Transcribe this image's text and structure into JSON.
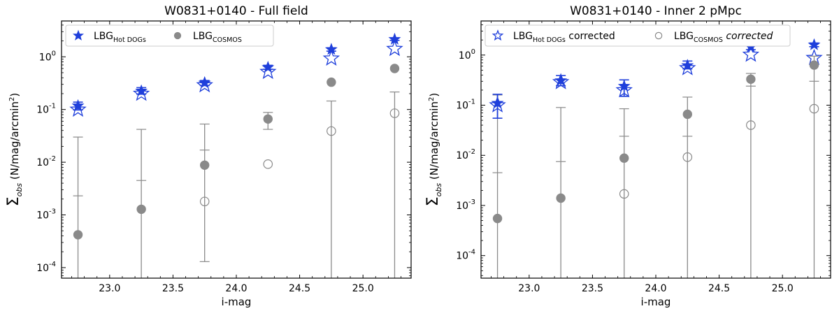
{
  "chart_data": [
    {
      "type": "scatter",
      "title": "W0831+0140 - Full field",
      "xlabel": "i-mag",
      "ylabel": "N/mag/arcmin",
      "ylabel_symbol": "Σ",
      "ylabel_subscript": "obs",
      "ylabel_prefix": " (",
      "ylabel_power": "2",
      "ylabel_suffix": ")",
      "xlim": [
        22.62,
        25.38
      ],
      "ylim_log10": [
        -4.2,
        0.68
      ],
      "xticks": [
        23.0,
        23.5,
        24.0,
        24.5,
        25.0
      ],
      "xtick_labels": [
        "23.0",
        "23.5",
        "24.0",
        "24.5",
        "25.0"
      ],
      "yticks_exp": [
        "-4",
        "-3",
        "-2",
        "-1",
        "0"
      ],
      "ytick_base": "10",
      "legend": {
        "location": "top-left",
        "entries": [
          {
            "marker": "star-filled",
            "color": "#1f3fdb",
            "main": "LBG",
            "sub": "Hot DOGs",
            "after": "",
            "after_italic": false
          },
          {
            "marker": "circle-filled",
            "color": "#8a8a8a",
            "main": "LBG",
            "sub": "COSMOS",
            "after": "",
            "after_italic": false
          }
        ]
      },
      "series": [
        {
          "name": "LBG Hot DOGs",
          "marker": "star-filled",
          "color": "#1f3fdb",
          "x": [
            22.75,
            23.25,
            23.75,
            24.25,
            24.75,
            25.25
          ],
          "y": [
            0.118,
            0.225,
            0.32,
            0.63,
            1.38,
            2.15
          ],
          "err_lo": [
            0.098,
            0.195,
            0.285,
            0.58,
            1.28,
            2.05
          ],
          "err_hi": [
            0.138,
            0.26,
            0.355,
            0.69,
            1.48,
            2.28
          ]
        },
        {
          "name": "LBG Hot DOGs corrected",
          "marker": "star-open",
          "color": "#1f3fdb",
          "x": [
            22.75,
            23.25,
            23.75,
            24.25,
            24.75,
            25.25
          ],
          "y": [
            0.1,
            0.2,
            0.29,
            0.52,
            0.93,
            1.42
          ],
          "err_lo": [
            null,
            null,
            null,
            null,
            null,
            null
          ],
          "err_hi": [
            null,
            null,
            null,
            null,
            null,
            null
          ]
        },
        {
          "name": "LBG COSMOS",
          "marker": "circle-filled",
          "color": "#8a8a8a",
          "x": [
            22.75,
            23.25,
            23.75,
            24.25,
            24.75,
            25.25
          ],
          "y": [
            0.00042,
            0.00128,
            0.0088,
            0.066,
            0.33,
            0.6
          ],
          "err_lo": [
            null,
            null,
            null,
            null,
            null,
            null
          ],
          "err_hi": [
            null,
            null,
            null,
            null,
            null,
            null
          ]
        },
        {
          "name": "LBG COSMOS corrected",
          "marker": "circle-open",
          "color": "#8a8a8a",
          "x": [
            22.75,
            23.25,
            23.75,
            24.25,
            24.75,
            25.25
          ],
          "y": [
            null,
            null,
            0.0018,
            0.0092,
            0.039,
            0.085
          ],
          "err_lo": [
            null,
            null,
            null,
            null,
            null,
            null
          ],
          "err_hi": [
            null,
            null,
            null,
            null,
            null,
            null
          ]
        },
        {
          "name": "COSMOS error bars",
          "marker": "errorbar",
          "color": "#8a8a8a",
          "x": [
            22.75,
            23.25,
            23.75,
            24.25,
            24.75,
            25.25
          ],
          "y": [
            null,
            null,
            null,
            null,
            null,
            null
          ],
          "err_lo": [
            5e-05,
            5e-05,
            0.00013,
            0.042,
            5e-05,
            5e-05
          ],
          "err_hi": [
            0.03,
            0.042,
            0.053,
            0.088,
            0.145,
            0.215
          ],
          "err_mid": [
            0.0023,
            0.0045,
            0.017,
            0.0,
            0.0,
            0.0
          ]
        }
      ]
    },
    {
      "type": "scatter",
      "title": "W0831+0140 - Inner 2 pMpc",
      "xlabel": "i-mag",
      "ylabel": "N/mag/arcmin",
      "ylabel_symbol": "Σ",
      "ylabel_subscript": "obs",
      "ylabel_prefix": " (",
      "ylabel_power": "2",
      "ylabel_suffix": ")",
      "xlim": [
        22.62,
        25.38
      ],
      "ylim_log10": [
        -4.45,
        0.68
      ],
      "xticks": [
        23.0,
        23.5,
        24.0,
        24.5,
        25.0
      ],
      "xtick_labels": [
        "23.0",
        "23.5",
        "24.0",
        "24.5",
        "25.0"
      ],
      "yticks_exp": [
        "-4",
        "-3",
        "-2",
        "-1",
        "0"
      ],
      "ytick_base": "10",
      "legend": {
        "location": "top-left",
        "entries": [
          {
            "marker": "star-open",
            "color": "#1f3fdb",
            "main": "LBG",
            "sub": "Hot DOGs",
            "after": " corrected",
            "after_italic": false
          },
          {
            "marker": "circle-open",
            "color": "#8a8a8a",
            "main": "LBG",
            "sub": "COSMOS",
            "after": " corrected",
            "after_italic": true
          }
        ]
      },
      "series": [
        {
          "name": "LBG Hot DOGs",
          "marker": "star-filled",
          "color": "#1f3fdb",
          "x": [
            22.75,
            23.25,
            23.75,
            24.25,
            24.75,
            25.25
          ],
          "y": [
            0.11,
            0.31,
            0.24,
            0.62,
            1.45,
            1.6
          ],
          "err_lo": [
            0.055,
            0.245,
            0.15,
            0.53,
            1.28,
            1.47
          ],
          "err_hi": [
            0.165,
            0.39,
            0.32,
            0.76,
            1.62,
            1.74
          ]
        },
        {
          "name": "LBG Hot DOGs corrected",
          "marker": "star-open",
          "color": "#1f3fdb",
          "x": [
            22.75,
            23.25,
            23.75,
            24.25,
            24.75,
            25.25
          ],
          "y": [
            0.1,
            0.29,
            0.2,
            0.55,
            1.02,
            0.88
          ],
          "err_lo": [
            null,
            null,
            null,
            null,
            null,
            null
          ],
          "err_hi": [
            null,
            null,
            null,
            null,
            null,
            null
          ]
        },
        {
          "name": "LBG COSMOS",
          "marker": "circle-filled",
          "color": "#8a8a8a",
          "x": [
            22.75,
            23.25,
            23.75,
            24.25,
            24.75,
            25.25
          ],
          "y": [
            0.00055,
            0.0014,
            0.0088,
            0.066,
            0.33,
            0.63
          ],
          "err_lo": [
            null,
            null,
            null,
            null,
            null,
            null
          ],
          "err_hi": [
            null,
            null,
            null,
            null,
            null,
            null
          ]
        },
        {
          "name": "LBG COSMOS corrected",
          "marker": "circle-open",
          "color": "#8a8a8a",
          "x": [
            22.75,
            23.25,
            23.75,
            24.25,
            24.75,
            25.25
          ],
          "y": [
            null,
            null,
            0.0017,
            0.0092,
            0.04,
            0.085
          ],
          "err_lo": [
            null,
            null,
            null,
            null,
            null,
            null
          ],
          "err_hi": [
            null,
            null,
            null,
            null,
            null,
            null
          ]
        },
        {
          "name": "COSMOS error bars",
          "marker": "errorbar",
          "color": "#8a8a8a",
          "x": [
            22.75,
            23.25,
            23.75,
            24.25,
            24.75,
            25.25
          ],
          "y": [
            null,
            null,
            null,
            null,
            null,
            null
          ],
          "err_lo": [
            3e-05,
            3e-05,
            3e-05,
            3e-05,
            3e-05,
            3e-05
          ],
          "err_hi": [
            0.16,
            0.09,
            0.085,
            0.145,
            0.43,
            0.95
          ],
          "err_mid": [
            0.0045,
            0.0075,
            0.024,
            0.024,
            0.24,
            0.3
          ]
        }
      ]
    }
  ]
}
